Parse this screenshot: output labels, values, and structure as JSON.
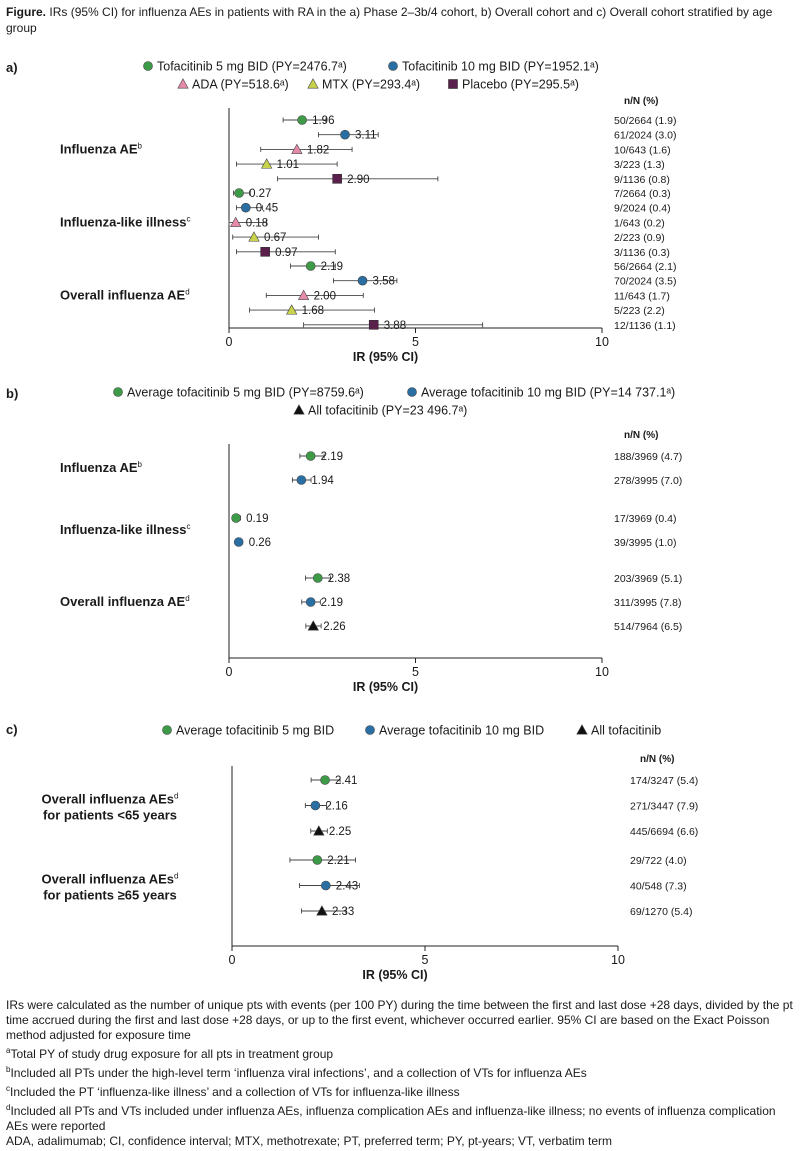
{
  "caption": {
    "label": "Figure.",
    "text": "IRs (95% CI) for influenza AEs in patients with RA in the a) Phase 2–3b/4 cohort, b) Overall cohort and c) Overall cohort stratified by age group"
  },
  "colors": {
    "green": "#3d9a47",
    "blue": "#2a6fa3",
    "pink": "#e58aa8",
    "olive": "#c8d24a",
    "purple": "#5a1f4a",
    "black": "#111111"
  },
  "chart_data": [
    {
      "panel": "a)",
      "type": "forest",
      "xlabel": "IR (95% CI)",
      "xlim": [
        0,
        10
      ],
      "xticks": [
        0,
        5,
        10
      ],
      "nn_header": "n/N (%)",
      "legend": [
        {
          "label": "Tofacitinib 5 mg BID (PY=2476.7ᵃ)",
          "marker": "circle",
          "color": "#3d9a47"
        },
        {
          "label": "Tofacitinib 10 mg BID (PY=1952.1ᵃ)",
          "marker": "circle",
          "color": "#2a6fa3"
        },
        {
          "label": "ADA (PY=518.6ᵃ)",
          "marker": "triangle",
          "color": "#e58aa8"
        },
        {
          "label": "MTX (PY=293.4ᵃ)",
          "marker": "triangle",
          "color": "#c8d24a"
        },
        {
          "label": "Placebo (PY=295.5ᵃ)",
          "marker": "square",
          "color": "#5a1f4a"
        }
      ],
      "groups": [
        {
          "label": "Influenza AE",
          "sup": "b",
          "rows": [
            {
              "series": 0,
              "ir": 1.96,
              "lo": 1.45,
              "hi": 2.6,
              "ir_label": "1.96",
              "nn": "50/2664 (1.9)"
            },
            {
              "series": 1,
              "ir": 3.11,
              "lo": 2.4,
              "hi": 4.0,
              "ir_label": "3.11",
              "nn": "61/2024 (3.0)"
            },
            {
              "series": 2,
              "ir": 1.82,
              "lo": 0.85,
              "hi": 3.3,
              "ir_label": "1.82",
              "nn": "10/643 (1.6)"
            },
            {
              "series": 3,
              "ir": 1.01,
              "lo": 0.2,
              "hi": 2.9,
              "ir_label": "1.01",
              "nn": "3/223 (1.3)"
            },
            {
              "series": 4,
              "ir": 2.9,
              "lo": 1.3,
              "hi": 5.6,
              "ir_label": "2.90",
              "nn": "9/1136 (0.8)"
            }
          ]
        },
        {
          "label": "Influenza-like illness",
          "sup": "c",
          "rows": [
            {
              "series": 0,
              "ir": 0.27,
              "lo": 0.12,
              "hi": 0.55,
              "ir_label": "0.27",
              "nn": "7/2664 (0.3)"
            },
            {
              "series": 1,
              "ir": 0.45,
              "lo": 0.2,
              "hi": 0.9,
              "ir_label": "0.45",
              "nn": "9/2024 (0.4)"
            },
            {
              "series": 2,
              "ir": 0.18,
              "lo": 0.0,
              "hi": 1.0,
              "ir_label": "0.18",
              "nn": "1/643 (0.2)"
            },
            {
              "series": 3,
              "ir": 0.67,
              "lo": 0.1,
              "hi": 2.4,
              "ir_label": "0.67",
              "nn": "2/223 (0.9)"
            },
            {
              "series": 4,
              "ir": 0.97,
              "lo": 0.2,
              "hi": 2.85,
              "ir_label": "0.97",
              "nn": "3/1136 (0.3)"
            }
          ]
        },
        {
          "label": "Overall influenza AE",
          "sup": "d",
          "rows": [
            {
              "series": 0,
              "ir": 2.19,
              "lo": 1.65,
              "hi": 2.85,
              "ir_label": "2.19",
              "nn": "56/2664 (2.1)"
            },
            {
              "series": 1,
              "ir": 3.58,
              "lo": 2.8,
              "hi": 4.5,
              "ir_label": "3.58",
              "nn": "70/2024 (3.5)"
            },
            {
              "series": 2,
              "ir": 2.0,
              "lo": 1.0,
              "hi": 3.6,
              "ir_label": "2.00",
              "nn": "11/643 (1.7)"
            },
            {
              "series": 3,
              "ir": 1.68,
              "lo": 0.55,
              "hi": 3.9,
              "ir_label": "1.68",
              "nn": "5/223 (2.2)"
            },
            {
              "series": 4,
              "ir": 3.88,
              "lo": 2.0,
              "hi": 6.8,
              "ir_label": "3.88",
              "nn": "12/1136 (1.1)"
            }
          ]
        }
      ]
    },
    {
      "panel": "b)",
      "type": "forest",
      "xlabel": "IR (95% CI)",
      "xlim": [
        0,
        10
      ],
      "xticks": [
        0,
        5,
        10
      ],
      "nn_header": "n/N (%)",
      "legend": [
        {
          "label": "Average tofacitinib 5 mg BID (PY=8759.6ᵃ)",
          "marker": "circle",
          "color": "#3d9a47"
        },
        {
          "label": "Average tofacitinib 10 mg BID (PY=14 737.1ᵃ)",
          "marker": "circle",
          "color": "#2a6fa3"
        },
        {
          "label": "All tofacitinib (PY=23 496.7ᵃ)",
          "marker": "triangle",
          "color": "#111111"
        }
      ],
      "groups": [
        {
          "label": "Influenza AE",
          "sup": "b",
          "rows": [
            {
              "series": 0,
              "ir": 2.19,
              "lo": 1.9,
              "hi": 2.55,
              "ir_label": "2.19",
              "nn": "188/3969 (4.7)"
            },
            {
              "series": 1,
              "ir": 1.94,
              "lo": 1.7,
              "hi": 2.2,
              "ir_label": "1.94",
              "nn": "278/3995 (7.0)"
            }
          ]
        },
        {
          "label": "Influenza-like illness",
          "sup": "c",
          "rows": [
            {
              "series": 0,
              "ir": 0.19,
              "lo": 0.11,
              "hi": 0.31,
              "ir_label": "0.19",
              "nn": "17/3969 (0.4)"
            },
            {
              "series": 1,
              "ir": 0.26,
              "lo": 0.19,
              "hi": 0.36,
              "ir_label": "0.26",
              "nn": "39/3995 (1.0)"
            }
          ]
        },
        {
          "label": "Overall influenza AE",
          "sup": "d",
          "rows": [
            {
              "series": 0,
              "ir": 2.38,
              "lo": 2.05,
              "hi": 2.72,
              "ir_label": "2.38",
              "nn": "203/3969 (5.1)"
            },
            {
              "series": 1,
              "ir": 2.19,
              "lo": 1.95,
              "hi": 2.45,
              "ir_label": "2.19",
              "nn": "311/3995 (7.8)"
            },
            {
              "series": 2,
              "ir": 2.26,
              "lo": 2.06,
              "hi": 2.47,
              "ir_label": "2.26",
              "nn": "514/7964 (6.5)"
            }
          ]
        }
      ]
    },
    {
      "panel": "c)",
      "type": "forest",
      "xlabel": "IR (95% CI)",
      "xlim": [
        0,
        10
      ],
      "xticks": [
        0,
        5,
        10
      ],
      "nn_header": "n/N (%)",
      "legend": [
        {
          "label": "Average tofacitinib 5 mg BID",
          "marker": "circle",
          "color": "#3d9a47"
        },
        {
          "label": "Average tofacitinib 10 mg BID",
          "marker": "circle",
          "color": "#2a6fa3"
        },
        {
          "label": "All tofacitinib",
          "marker": "triangle",
          "color": "#111111"
        }
      ],
      "groups": [
        {
          "label": "Overall influenza AEs",
          "sup": "d",
          "label2": "for patients <65 years",
          "rows": [
            {
              "series": 0,
              "ir": 2.41,
              "lo": 2.05,
              "hi": 2.8,
              "ir_label": "2.41",
              "nn": "174/3247 (5.4)"
            },
            {
              "series": 1,
              "ir": 2.16,
              "lo": 1.9,
              "hi": 2.45,
              "ir_label": "2.16",
              "nn": "271/3447 (7.9)"
            },
            {
              "series": 2,
              "ir": 2.25,
              "lo": 2.04,
              "hi": 2.47,
              "ir_label": "2.25",
              "nn": "445/6694 (6.6)"
            }
          ]
        },
        {
          "label": "Overall influenza AEs",
          "sup": "d",
          "label2": "for patients ≥65 years",
          "rows": [
            {
              "series": 0,
              "ir": 2.21,
              "lo": 1.5,
              "hi": 3.2,
              "ir_label": "2.21",
              "nn": "29/722 (4.0)"
            },
            {
              "series": 1,
              "ir": 2.43,
              "lo": 1.75,
              "hi": 3.3,
              "ir_label": "2.43",
              "nn": "40/548 (7.3)"
            },
            {
              "series": 2,
              "ir": 2.33,
              "lo": 1.8,
              "hi": 2.95,
              "ir_label": "2.33",
              "nn": "69/1270 (5.4)"
            }
          ]
        }
      ]
    }
  ],
  "footnotes": {
    "main": "IRs were calculated as the number of unique pts with events (per 100 PY) during the time between the first and last dose +28 days, divided by the pt time accrued during the first and last dose +28 days, or up to the first event, whichever occurred earlier. 95% CI are based on the Exact Poisson method adjusted for exposure time",
    "a": "Total PY of study drug exposure for all pts in treatment group",
    "b": "Included all PTs under the high-level term ‘influenza viral infections’, and a collection of VTs for influenza AEs",
    "c": "Included the PT ‘influenza-like illness’ and a collection of VTs for influenza-like illness",
    "d": "Included all PTs and VTs included under influenza AEs, influenza complication AEs and influenza-like illness; no events of influenza complication AEs were reported",
    "abbrev": "ADA, adalimumab; CI, confidence interval; MTX, methotrexate; PT, preferred term; PY, pt-years; VT, verbatim term",
    "sup_a": "a",
    "sup_b": "b",
    "sup_c": "c",
    "sup_d": "d"
  }
}
